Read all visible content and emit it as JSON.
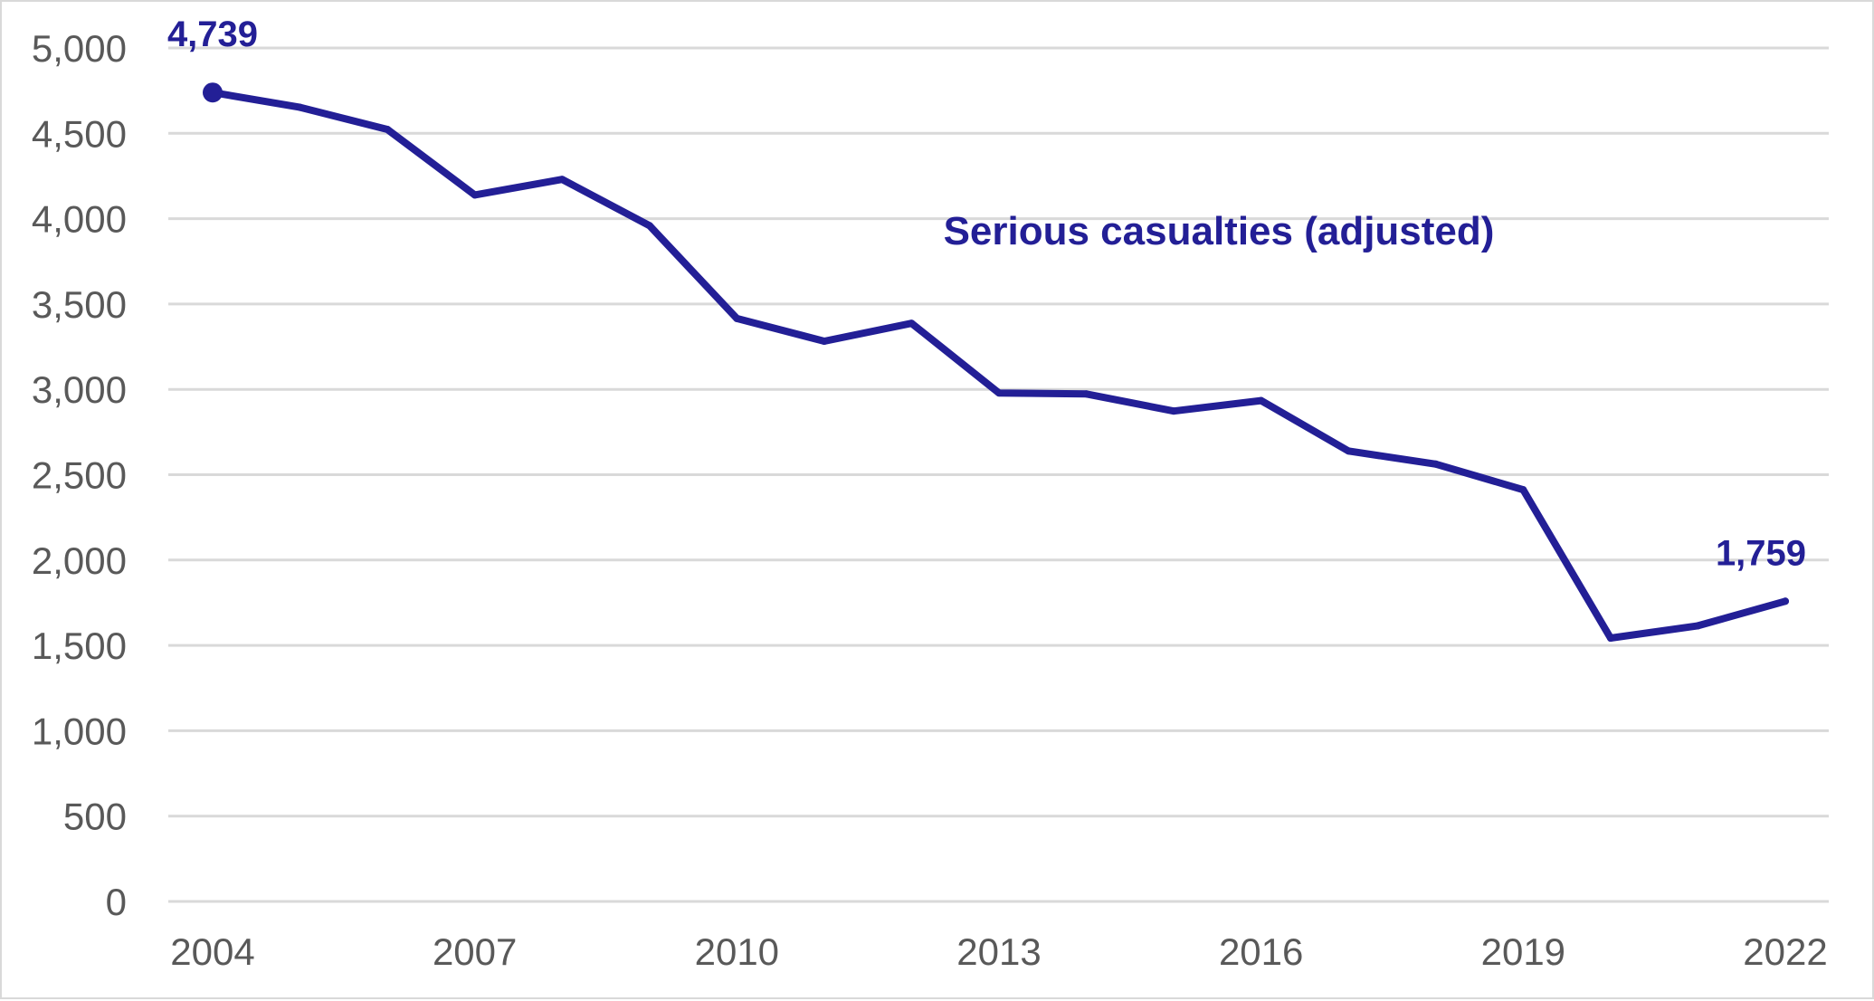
{
  "chart_data": {
    "type": "line",
    "title": "",
    "xlabel": "",
    "ylabel": "",
    "x": [
      2004,
      2005,
      2006,
      2007,
      2008,
      2009,
      2010,
      2011,
      2012,
      2013,
      2014,
      2015,
      2016,
      2017,
      2018,
      2019,
      2020,
      2021,
      2022
    ],
    "series": [
      {
        "name": "Serious casualties (adjusted)",
        "color": "#231f96",
        "values": [
          4739,
          4652,
          4523,
          4139,
          4230,
          3959,
          3415,
          3282,
          3387,
          2979,
          2973,
          2873,
          2934,
          2639,
          2562,
          2412,
          1543,
          1615,
          1759
        ]
      }
    ],
    "ylim": [
      0,
      5000
    ],
    "xlim": [
      2004,
      2022
    ],
    "y_ticks": [
      0,
      500,
      1000,
      1500,
      2000,
      2500,
      3000,
      3500,
      4000,
      4500,
      5000
    ],
    "y_tick_labels": [
      "0",
      "500",
      "1,000",
      "1,500",
      "2,000",
      "2,500",
      "3,000",
      "3,500",
      "4,000",
      "4,500",
      "5,000"
    ],
    "x_ticks": [
      2004,
      2007,
      2010,
      2013,
      2016,
      2019,
      2022
    ],
    "x_tick_labels": [
      "2004",
      "2007",
      "2010",
      "2013",
      "2016",
      "2019",
      "2022"
    ],
    "grid": "horizontal",
    "annotations": [
      {
        "x": 2004,
        "y": 4739,
        "text": "4,739",
        "marker": true
      },
      {
        "x": 2022,
        "y": 1759,
        "text": "1,759",
        "marker": false
      }
    ],
    "series_label": {
      "text": "Serious casualties (adjusted)",
      "placement": "upper-middle"
    },
    "legend": "none"
  }
}
